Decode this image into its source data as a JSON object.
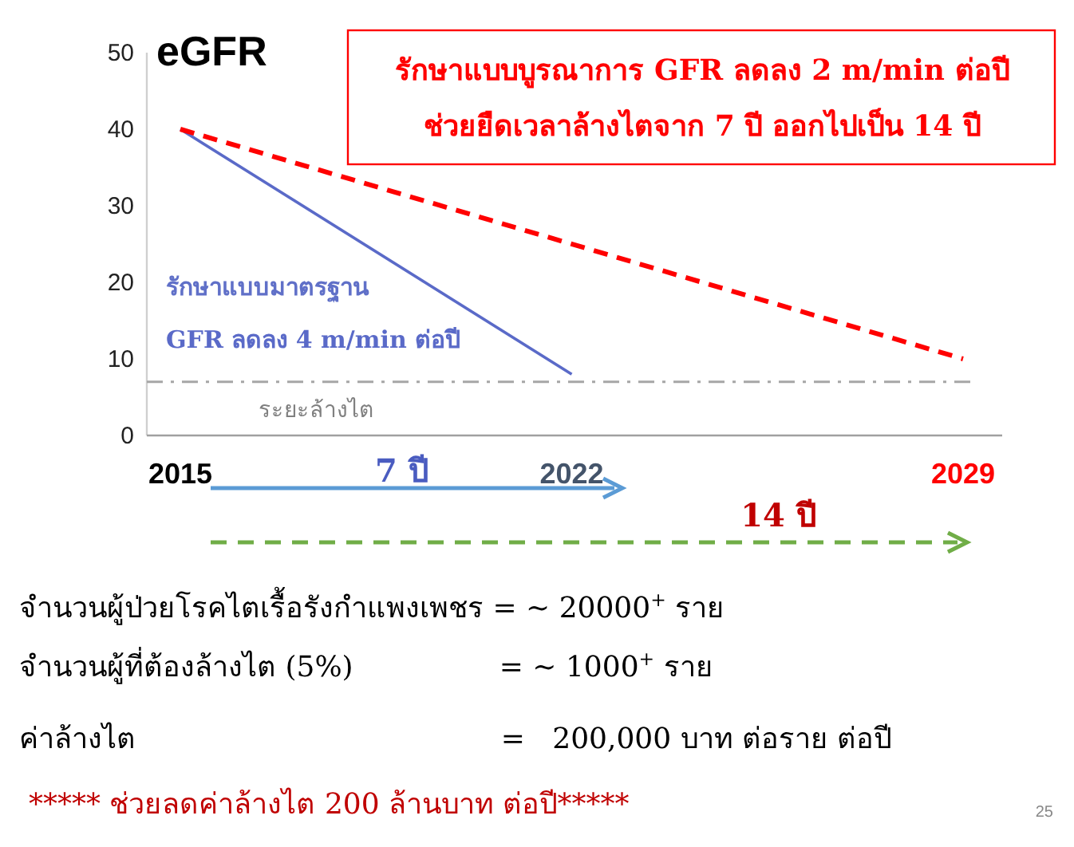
{
  "chart_data": {
    "type": "line",
    "ylabel": "eGFR",
    "series": [
      {
        "color": "#5a6ac8",
        "x": [
          2015,
          2022
        ],
        "values": [
          40,
          8
        ],
        "line_style": "solid"
      },
      {
        "color": "#ff0000",
        "x": [
          2015,
          2029
        ],
        "values": [
          40,
          10
        ],
        "line_style": "dashed"
      }
    ],
    "xlim": [
      2014.4,
      2029.7
    ],
    "ylim": [
      0,
      50
    ],
    "xticks": [
      2015,
      2022,
      2029
    ],
    "yticks": [
      0,
      10,
      20,
      30,
      40,
      50
    ],
    "grid": false,
    "marker": "none",
    "ref_lines": [
      {
        "axis": "y",
        "value": 7,
        "label": "ระยะล้างไต",
        "color": "#a6a6a6",
        "line_style": "dashdot"
      }
    ],
    "annotations": [
      "รักษาแบบบูรณาการ GFR ลดลง 2 m/min ต่อปี",
      "ช่วยยืดเวลาล้างไตจาก 7 ปี ออกไปเป็น 14 ปี",
      "รักษาแบบมาตรฐาน",
      "GFR ลดลง 4 m/min ต่อปี",
      "7 ปี",
      "14 ปี",
      "จำนวนผู้ป่วยโรคไตเรื้อรังกำแพงเพชร = ~ 20000$^{+}$ ราย",
      "จำนวนผู้ที่ต้องล้างไต (5%)                = ~ 1000$^{+}$ ราย",
      "ค่าล้างไต                                        =   200,000 บาท ต่อราย ต่อปี",
      "***** ช่วยลดค่าล้างไต 200 ล้านบาท ต่อปี*****",
      "25"
    ]
  }
}
